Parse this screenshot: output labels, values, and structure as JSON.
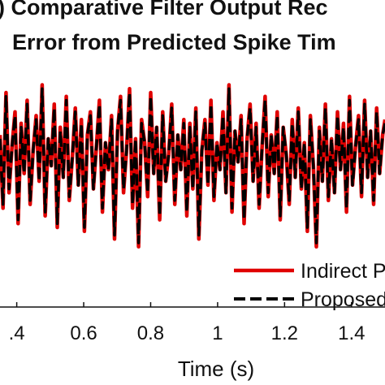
{
  "chart_data": {
    "type": "line",
    "title_line1": ") Comparative Filter Output Rec",
    "title_line2": "Error from Predicted Spike Tim",
    "xlabel": "Time (s)",
    "ylabel": "",
    "xticks": [
      0.4,
      0.6,
      0.8,
      1,
      1.2,
      1.4
    ],
    "xtick_labels": [
      ".4",
      "0.6",
      "0.8",
      "1",
      "1.2",
      "1.4"
    ],
    "xlim": [
      0.35,
      1.5
    ],
    "ylim": [
      -2.6,
      2.1
    ],
    "grid": false,
    "legend_position": "bottom-right",
    "series": [
      {
        "name": "Indirect P",
        "color": "#e00000",
        "style": "solid",
        "x": [
          0.35,
          0.359,
          0.368,
          0.377,
          0.386,
          0.395,
          0.404,
          0.413,
          0.422,
          0.431,
          0.44,
          0.449,
          0.458,
          0.467,
          0.476,
          0.485,
          0.494,
          0.503,
          0.512,
          0.521,
          0.53,
          0.539,
          0.548,
          0.557,
          0.566,
          0.575,
          0.584,
          0.593,
          0.602,
          0.611,
          0.62,
          0.629,
          0.638,
          0.647,
          0.656,
          0.665,
          0.674,
          0.683,
          0.692,
          0.701,
          0.71,
          0.719,
          0.728,
          0.737,
          0.746,
          0.755,
          0.764,
          0.773,
          0.782,
          0.791,
          0.8,
          0.809,
          0.818,
          0.827,
          0.836,
          0.845,
          0.854,
          0.863,
          0.872,
          0.881,
          0.89,
          0.899,
          0.908,
          0.917,
          0.926,
          0.935,
          0.944,
          0.953,
          0.962,
          0.971,
          0.98,
          0.989,
          0.998,
          1.007,
          1.016,
          1.025,
          1.034,
          1.043,
          1.052,
          1.061,
          1.07,
          1.079,
          1.088,
          1.097,
          1.106,
          1.115,
          1.124,
          1.133,
          1.142,
          1.151,
          1.16,
          1.169,
          1.178,
          1.187,
          1.196,
          1.205,
          1.214,
          1.223,
          1.232,
          1.241,
          1.25,
          1.259,
          1.268,
          1.277,
          1.286,
          1.295,
          1.304,
          1.313,
          1.322,
          1.331,
          1.34,
          1.349,
          1.358,
          1.367,
          1.376,
          1.385,
          1.394,
          1.403,
          1.412,
          1.421,
          1.43,
          1.439,
          1.448,
          1.457,
          1.466,
          1.475,
          1.484,
          1.493,
          1.5
        ],
        "y": [
          0.6,
          -1.3,
          1.7,
          -0.9,
          0.3,
          1.2,
          -1.7,
          0.9,
          -0.4,
          1.5,
          -1.2,
          0.2,
          1.1,
          -0.6,
          1.9,
          -1.5,
          0.5,
          -0.2,
          1.4,
          -1.8,
          0.8,
          -0.5,
          1.6,
          -1.1,
          0.0,
          1.3,
          -0.7,
          1.0,
          -1.9,
          0.6,
          1.2,
          -0.8,
          0.3,
          1.5,
          -1.4,
          0.4,
          -0.3,
          1.1,
          -2.1,
          0.7,
          1.6,
          -0.9,
          0.2,
          1.8,
          -1.3,
          0.5,
          -2.3,
          1.0,
          0.4,
          -1.0,
          1.7,
          -0.4,
          0.8,
          -1.6,
          1.2,
          -0.6,
          0.1,
          1.4,
          -1.2,
          0.6,
          -0.3,
          1.0,
          -1.5,
          0.9,
          -0.8,
          1.3,
          -2.1,
          0.2,
          1.0,
          -0.7,
          1.5,
          -1.1,
          0.4,
          -0.3,
          1.2,
          -0.9,
          1.9,
          -1.4,
          0.7,
          -0.1,
          1.1,
          -1.7,
          0.5,
          1.4,
          -0.6,
          0.9,
          -1.3,
          0.3,
          1.6,
          -1.0,
          0.6,
          -0.4,
          1.2,
          -1.6,
          0.8,
          0.1,
          -1.2,
          1.0,
          -0.5,
          1.3,
          -0.8,
          0.4,
          -1.9,
          1.1,
          -0.2,
          -2.3,
          0.8,
          -0.6,
          1.4,
          -1.1,
          0.5,
          -0.9,
          1.2,
          -0.3,
          0.9,
          -1.4,
          1.6,
          -0.7,
          0.3,
          1.1,
          -1.0,
          1.5,
          -0.5,
          0.7,
          -1.2,
          1.3,
          -0.4,
          0.6,
          1.0
        ]
      },
      {
        "name": "Proposed",
        "color": "#000000",
        "style": "dashed",
        "x": [
          0.35,
          0.359,
          0.368,
          0.377,
          0.386,
          0.395,
          0.404,
          0.413,
          0.422,
          0.431,
          0.44,
          0.449,
          0.458,
          0.467,
          0.476,
          0.485,
          0.494,
          0.503,
          0.512,
          0.521,
          0.53,
          0.539,
          0.548,
          0.557,
          0.566,
          0.575,
          0.584,
          0.593,
          0.602,
          0.611,
          0.62,
          0.629,
          0.638,
          0.647,
          0.656,
          0.665,
          0.674,
          0.683,
          0.692,
          0.701,
          0.71,
          0.719,
          0.728,
          0.737,
          0.746,
          0.755,
          0.764,
          0.773,
          0.782,
          0.791,
          0.8,
          0.809,
          0.818,
          0.827,
          0.836,
          0.845,
          0.854,
          0.863,
          0.872,
          0.881,
          0.89,
          0.899,
          0.908,
          0.917,
          0.926,
          0.935,
          0.944,
          0.953,
          0.962,
          0.971,
          0.98,
          0.989,
          0.998,
          1.007,
          1.016,
          1.025,
          1.034,
          1.043,
          1.052,
          1.061,
          1.07,
          1.079,
          1.088,
          1.097,
          1.106,
          1.115,
          1.124,
          1.133,
          1.142,
          1.151,
          1.16,
          1.169,
          1.178,
          1.187,
          1.196,
          1.205,
          1.214,
          1.223,
          1.232,
          1.241,
          1.25,
          1.259,
          1.268,
          1.277,
          1.286,
          1.295,
          1.304,
          1.313,
          1.322,
          1.331,
          1.34,
          1.349,
          1.358,
          1.367,
          1.376,
          1.385,
          1.394,
          1.403,
          1.412,
          1.421,
          1.43,
          1.439,
          1.448,
          1.457,
          1.466,
          1.475,
          1.484,
          1.493,
          1.5
        ],
        "y": [
          0.5,
          -1.2,
          1.6,
          -0.8,
          0.3,
          1.1,
          -1.6,
          0.8,
          -0.4,
          1.4,
          -1.1,
          0.2,
          1.0,
          -0.6,
          1.8,
          -1.4,
          0.5,
          -0.2,
          1.3,
          -1.7,
          0.7,
          -0.5,
          1.5,
          -1.0,
          0.0,
          1.2,
          -0.7,
          0.9,
          -1.8,
          0.6,
          1.1,
          -0.8,
          0.3,
          1.4,
          -1.3,
          0.4,
          -0.3,
          1.0,
          -2.0,
          0.7,
          1.5,
          -0.8,
          0.2,
          1.7,
          -1.2,
          0.5,
          -2.2,
          0.9,
          0.4,
          -0.9,
          1.6,
          -0.4,
          0.8,
          -1.5,
          1.1,
          -0.6,
          0.1,
          1.3,
          -1.1,
          0.6,
          -0.3,
          0.9,
          -1.4,
          0.8,
          -0.8,
          1.2,
          -2.0,
          0.2,
          0.9,
          -0.7,
          1.4,
          -1.0,
          0.4,
          -0.3,
          1.1,
          -0.9,
          1.8,
          -1.3,
          0.7,
          -0.1,
          1.0,
          -1.6,
          0.5,
          1.3,
          -0.6,
          0.8,
          -1.2,
          0.3,
          1.5,
          -0.9,
          0.6,
          -0.4,
          1.1,
          -1.5,
          0.8,
          0.1,
          -1.1,
          0.9,
          -0.5,
          1.2,
          -0.8,
          0.4,
          -1.8,
          1.0,
          -0.2,
          -2.2,
          0.7,
          -0.6,
          1.3,
          -1.0,
          0.5,
          -0.9,
          1.1,
          -0.3,
          0.8,
          -1.3,
          1.5,
          -0.7,
          0.3,
          1.0,
          -0.9,
          1.4,
          -0.5,
          0.7,
          -1.1,
          1.2,
          -0.4,
          0.6,
          0.9
        ]
      }
    ]
  }
}
